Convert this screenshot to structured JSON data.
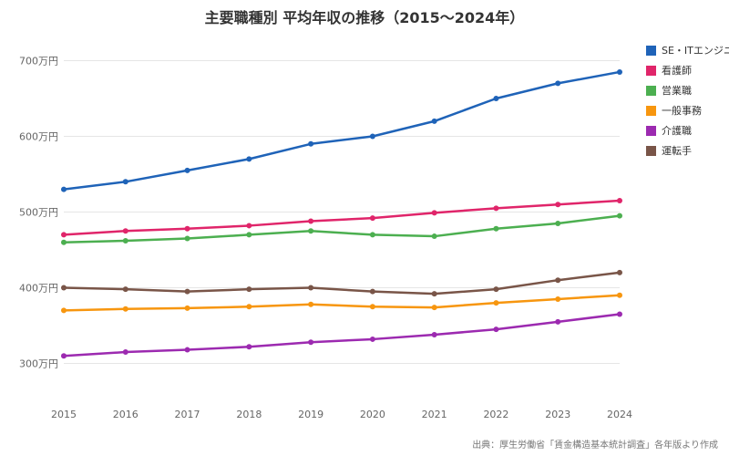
{
  "chart_data": {
    "type": "line",
    "title": "主要職種別 平均年収の推移（2015〜2024年）",
    "xlabel": "",
    "ylabel": "",
    "categories": [
      "2015",
      "2016",
      "2017",
      "2018",
      "2019",
      "2020",
      "2021",
      "2022",
      "2023",
      "2024"
    ],
    "ylim": [
      250,
      750
    ],
    "y_ticks": [
      300,
      400,
      500,
      600,
      700
    ],
    "y_tick_labels": [
      "300万円",
      "400万円",
      "500万円",
      "600万円",
      "700万円"
    ],
    "grid": true,
    "legend_position": "right",
    "series": [
      {
        "name": "SE・ITエンジニア",
        "color": "#1f63b8",
        "values": [
          530,
          540,
          555,
          570,
          590,
          600,
          620,
          650,
          670,
          685
        ]
      },
      {
        "name": "看護師",
        "color": "#e0256a",
        "values": [
          470,
          475,
          478,
          482,
          488,
          492,
          499,
          505,
          510,
          515
        ]
      },
      {
        "name": "営業職",
        "color": "#4caf50",
        "values": [
          460,
          462,
          465,
          470,
          475,
          470,
          468,
          478,
          485,
          495
        ]
      },
      {
        "name": "一般事務",
        "color": "#f7960f",
        "values": [
          370,
          372,
          373,
          375,
          378,
          375,
          374,
          380,
          385,
          390
        ]
      },
      {
        "name": "介護職",
        "color": "#9c2ab0",
        "values": [
          310,
          315,
          318,
          322,
          328,
          332,
          338,
          345,
          355,
          365
        ]
      },
      {
        "name": "運転手",
        "color": "#795548",
        "values": [
          400,
          398,
          395,
          398,
          400,
          395,
          392,
          398,
          410,
          420
        ]
      }
    ],
    "source": "出典：厚生労働省「賃金構造基本統計調査」各年版より作成"
  }
}
